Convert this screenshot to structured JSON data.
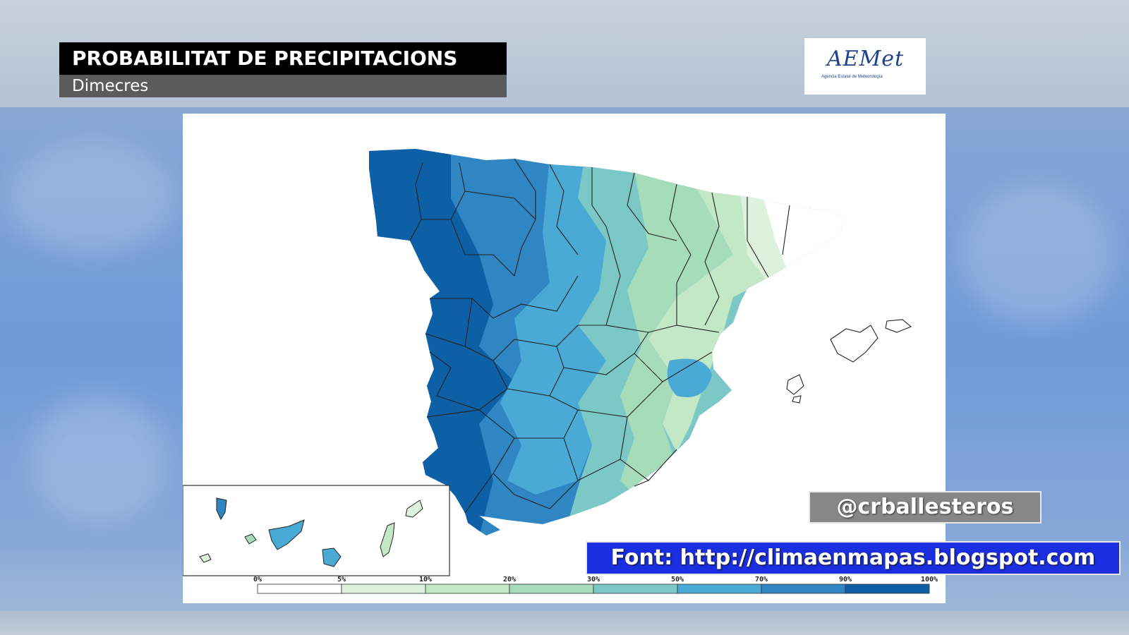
{
  "header": {
    "title": "PROBABILITAT DE PRECIPITACIONS",
    "subtitle": "Dimecres"
  },
  "logo": {
    "word": "AEMet",
    "tagline": "Agencia Estatal de Meteorología"
  },
  "overlay": {
    "handle": "@crballesteros",
    "source": "Font: http://climaenmapas.blogspot.com"
  },
  "legend": {
    "ticks": [
      "0%",
      "5%",
      "10%",
      "20%",
      "30%",
      "50%",
      "70%",
      "90%",
      "100%"
    ],
    "colors": [
      "#ffffff",
      "#dcf2dc",
      "#c3e8c6",
      "#a6dcba",
      "#7cc8c6",
      "#4aaad6",
      "#2f86c2",
      "#0e60a6"
    ]
  },
  "map_colors": {
    "very_high": "#0e60a6",
    "high": "#2f86c2",
    "mid_high": "#4aaad6",
    "mid": "#7cc8c6",
    "mid_low": "#a6dcba",
    "low": "#c3e8c6",
    "very_low": "#dcf2dc",
    "none": "#ffffff"
  }
}
